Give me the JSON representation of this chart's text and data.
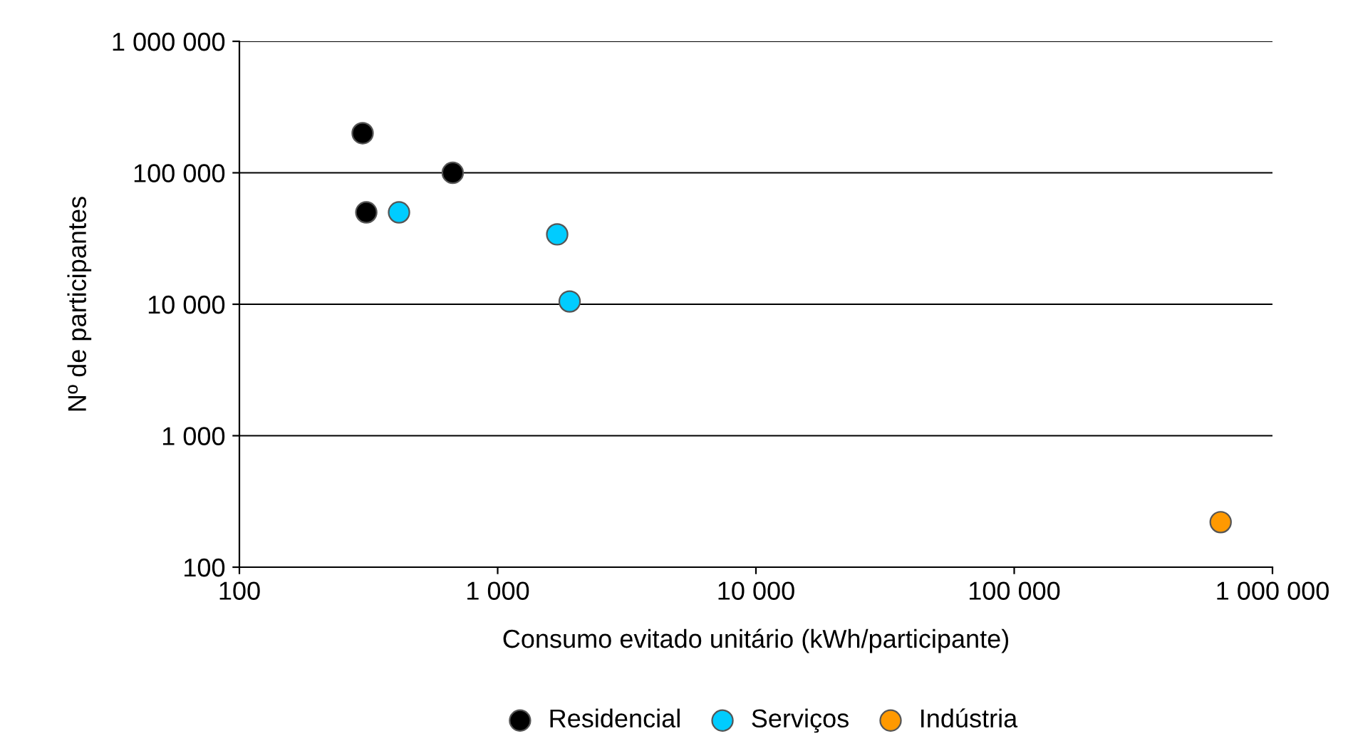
{
  "chart_data": {
    "type": "scatter",
    "xlabel": "Consumo evitado unitário (kWh/participante)",
    "ylabel": "Nº de participantes",
    "log": "xy",
    "grid": "y",
    "legend": "bottom",
    "marker": "circle",
    "xlim": [
      100,
      1000000
    ],
    "ylim": [
      100,
      1000000
    ],
    "xticks": [
      100,
      {
        "value": 1000,
        "label": "1 000"
      },
      {
        "value": 10000,
        "label": "10 000"
      },
      {
        "value": 100000,
        "label": "100 000"
      },
      {
        "value": 1000000,
        "label": "1 000 000"
      }
    ],
    "yticks": [
      100,
      {
        "value": 1000,
        "label": "1 000"
      },
      {
        "value": 10000,
        "label": "10 000"
      },
      {
        "value": 100000,
        "label": "100 000"
      },
      {
        "value": 1000000,
        "label": "1 000 000"
      }
    ],
    "series": [
      {
        "name": "Residencial",
        "color": "#000000",
        "x": [
          300,
          310,
          670
        ],
        "values": [
          200000,
          50000,
          100000
        ]
      },
      {
        "name": "Serviços",
        "color": "#00ccff",
        "x": [
          415,
          1700,
          1900
        ],
        "values": [
          50000,
          34000,
          10500
        ]
      },
      {
        "name": "Indústria",
        "color": "#ff9900",
        "x": [
          630000
        ],
        "values": [
          220
        ]
      }
    ]
  }
}
